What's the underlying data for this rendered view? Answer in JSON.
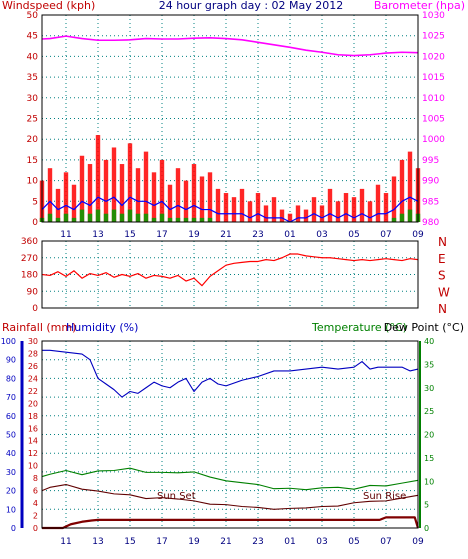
{
  "chart_data": [
    {
      "type": "line",
      "title": "24 hour graph day : 02 May 2012",
      "ylabel": "Windspeed (kph)",
      "y2label": "Barometer (hpa)",
      "x_ticks": [
        "11",
        "13",
        "15",
        "17",
        "19",
        "21",
        "23",
        "01",
        "03",
        "05",
        "07",
        "09"
      ],
      "y_ticks": [
        0,
        5,
        10,
        15,
        20,
        25,
        30,
        35,
        40,
        45,
        50
      ],
      "y2_ticks": [
        980,
        985,
        990,
        995,
        1000,
        1005,
        1010,
        1015,
        1020,
        1025,
        1030
      ],
      "ylim": [
        0,
        50
      ],
      "y2lim": [
        980,
        1030
      ],
      "grid": true,
      "colors": {
        "gust": "#ff0000",
        "average": "#0000ff",
        "low": "#00a000",
        "barometer": "#ff00ff",
        "left_axis": "#c00000",
        "right_axis": "#ff00ff"
      },
      "barometer": {
        "hours": [
          9.5,
          10,
          11,
          12,
          13,
          14,
          15,
          16,
          17,
          18,
          19,
          20,
          21,
          22,
          23,
          24,
          25,
          26,
          27,
          28,
          29,
          30,
          31,
          32,
          33
        ],
        "values": [
          1024.2,
          1024.3,
          1024.9,
          1024.3,
          1023.9,
          1023.9,
          1024.0,
          1024.3,
          1024.2,
          1024.2,
          1024.4,
          1024.5,
          1024.3,
          1024.0,
          1023.4,
          1022.8,
          1022.2,
          1021.5,
          1021.0,
          1020.4,
          1020.2,
          1020.4,
          1020.8,
          1021.0,
          1020.9
        ]
      },
      "gust": {
        "hours": [
          9.5,
          10,
          10.5,
          11,
          11.5,
          12,
          12.5,
          13,
          13.5,
          14,
          14.5,
          15,
          15.5,
          16,
          16.5,
          17,
          17.5,
          18,
          18.5,
          19,
          19.5,
          20,
          20.5,
          21,
          21.5,
          22,
          22.5,
          23,
          23.5,
          24,
          24.5,
          25,
          25.5,
          26,
          26.5,
          27,
          27.5,
          28,
          28.5,
          29,
          29.5,
          30,
          30.5,
          31,
          31.5,
          32,
          32.5,
          33
        ],
        "values": [
          10,
          13,
          8,
          12,
          9,
          16,
          14,
          21,
          15,
          18,
          14,
          19,
          13,
          17,
          12,
          15,
          9,
          13,
          10,
          14,
          11,
          12,
          8,
          7,
          6,
          8,
          5,
          7,
          4,
          6,
          3,
          2,
          4,
          3,
          6,
          4,
          8,
          5,
          7,
          6,
          8,
          5,
          9,
          7,
          11,
          15,
          17,
          13
        ]
      },
      "average": {
        "hours": [
          9.5,
          10,
          10.5,
          11,
          11.5,
          12,
          12.5,
          13,
          13.5,
          14,
          14.5,
          15,
          15.5,
          16,
          16.5,
          17,
          17.5,
          18,
          18.5,
          19,
          19.5,
          20,
          20.5,
          21,
          21.5,
          22,
          22.5,
          23,
          23.5,
          24,
          24.5,
          25,
          25.5,
          26,
          26.5,
          27,
          27.5,
          28,
          28.5,
          29,
          29.5,
          30,
          30.5,
          31,
          31.5,
          32,
          32.5,
          33
        ],
        "values": [
          3,
          5,
          3,
          4,
          3,
          5,
          4,
          6,
          5,
          6,
          4,
          6,
          5,
          5,
          4,
          5,
          3,
          4,
          3,
          4,
          3,
          3,
          2,
          2,
          2,
          2,
          1,
          2,
          1,
          1,
          1,
          0,
          1,
          1,
          2,
          1,
          2,
          1,
          2,
          1,
          2,
          1,
          2,
          2,
          3,
          5,
          6,
          5
        ]
      },
      "low": {
        "hours": [
          9.5,
          10,
          10.5,
          11,
          11.5,
          12,
          12.5,
          13,
          13.5,
          14,
          14.5,
          15,
          15.5,
          16,
          16.5,
          17,
          17.5,
          18,
          18.5,
          19,
          19.5,
          20,
          20.5,
          21,
          21.5,
          22,
          22.5,
          23,
          23.5,
          24,
          24.5,
          25,
          25.5,
          26,
          26.5,
          27,
          27.5,
          28,
          28.5,
          29,
          29.5,
          30,
          30.5,
          31,
          31.5,
          32,
          32.5,
          33
        ],
        "values": [
          1,
          2,
          1,
          2,
          1,
          3,
          2,
          3,
          2,
          3,
          2,
          3,
          2,
          2,
          1,
          2,
          1,
          1,
          1,
          1,
          1,
          1,
          0,
          0,
          0,
          0,
          0,
          0,
          0,
          0,
          0,
          0,
          0,
          0,
          0,
          0,
          0,
          0,
          0,
          0,
          0,
          0,
          0,
          0,
          1,
          2,
          3,
          2
        ]
      }
    },
    {
      "type": "scatter",
      "series_name": "Wind direction",
      "y_ticks": [
        0,
        90,
        180,
        270,
        360
      ],
      "compass_labels": [
        "N",
        "W",
        "S",
        "E",
        "N"
      ],
      "x_ticks": [
        "11",
        "13",
        "15",
        "17",
        "19",
        "21",
        "23",
        "01",
        "03",
        "05",
        "07",
        "09"
      ],
      "ylim": [
        0,
        360
      ],
      "grid": true,
      "colors": {
        "direction": "#ff0000",
        "compass": "#c00000"
      },
      "direction": {
        "hours": [
          9.5,
          10,
          10.5,
          11,
          11.5,
          12,
          12.5,
          13,
          13.5,
          14,
          14.5,
          15,
          15.5,
          16,
          16.5,
          17,
          17.5,
          18,
          18.5,
          19,
          19.5,
          20,
          20.5,
          21,
          21.5,
          22,
          22.5,
          23,
          23.5,
          24,
          24.5,
          25,
          25.5,
          26,
          26.5,
          27,
          27.5,
          28,
          28.5,
          29,
          29.5,
          30,
          30.5,
          31,
          31.5,
          32,
          32.5,
          33
        ],
        "values": [
          180,
          175,
          195,
          170,
          200,
          160,
          185,
          175,
          190,
          165,
          180,
          170,
          185,
          160,
          175,
          170,
          160,
          175,
          145,
          160,
          120,
          170,
          200,
          230,
          240,
          245,
          250,
          250,
          260,
          255,
          270,
          290,
          290,
          280,
          275,
          270,
          270,
          265,
          260,
          255,
          260,
          255,
          260,
          265,
          260,
          255,
          265,
          260
        ]
      }
    },
    {
      "type": "line",
      "ylabel": "Rainfall (mm)",
      "ylabel2": "Humidity (%)",
      "y2label": "Temperature (°C)",
      "y2label2": "Dew Point (°C)",
      "x_ticks": [
        "11",
        "13",
        "15",
        "17",
        "19",
        "21",
        "23",
        "01",
        "03",
        "05",
        "07",
        "09"
      ],
      "rain_ticks": [
        0,
        2,
        4,
        6,
        8,
        10,
        12,
        14,
        16,
        18,
        20,
        22,
        24,
        26,
        28,
        30
      ],
      "humidity_ticks": [
        0,
        10,
        20,
        30,
        40,
        50,
        60,
        70,
        80,
        90,
        100
      ],
      "temp_ticks": [
        0,
        5,
        10,
        15,
        20,
        25,
        30,
        35,
        40
      ],
      "ylim_humidity": [
        0,
        100
      ],
      "ylim_rain": [
        0,
        30
      ],
      "y2lim": [
        0,
        40
      ],
      "grid": true,
      "annotations": {
        "sunset": "Sun Set",
        "sunrise": "Sun Rise"
      },
      "colors": {
        "humidity": "#0000c0",
        "temperature": "#008000",
        "dewpoint": "#600000",
        "rainfall": "#800000",
        "rain_axis": "#c00000",
        "humidity_axis": "#0000c0",
        "temp_axis": "#008000"
      },
      "humidity": {
        "hours": [
          9.5,
          10,
          11,
          12,
          12.5,
          13,
          13.5,
          14,
          14.5,
          15,
          15.5,
          16,
          16.5,
          17,
          17.5,
          18,
          18.5,
          19,
          19.5,
          20,
          20.5,
          21,
          22,
          23,
          24,
          25,
          26,
          27,
          28,
          29,
          29.5,
          30,
          30.5,
          31,
          32,
          32.5,
          33
        ],
        "values": [
          95,
          95,
          94,
          93,
          90,
          80,
          77,
          74,
          70,
          73,
          72,
          75,
          78,
          76,
          75,
          78,
          80,
          73,
          78,
          80,
          77,
          76,
          79,
          81,
          84,
          84,
          85,
          86,
          85,
          86,
          89,
          85,
          86,
          86,
          86,
          84,
          85
        ]
      },
      "temperature": {
        "hours": [
          9.5,
          10,
          11,
          12,
          13,
          14,
          15,
          16,
          17,
          18,
          19,
          20,
          21,
          22,
          23,
          24,
          25,
          26,
          27,
          28,
          29,
          30,
          31,
          32,
          33
        ],
        "values": [
          11.0,
          11.5,
          12.3,
          11.4,
          12.2,
          12.3,
          12.8,
          11.9,
          11.9,
          11.8,
          12.0,
          10.9,
          10.1,
          9.7,
          9.3,
          8.4,
          8.5,
          8.2,
          8.6,
          8.7,
          8.3,
          9.1,
          9.0,
          9.6,
          10.2
        ]
      },
      "dewpoint": {
        "hours": [
          9.5,
          10,
          11,
          12,
          13,
          14,
          15,
          16,
          17,
          18,
          19,
          20,
          21,
          22,
          23,
          24,
          25,
          26,
          27,
          28,
          29,
          30,
          31,
          32,
          33
        ],
        "values": [
          8.0,
          8.7,
          9.3,
          8.3,
          7.9,
          7.3,
          7.1,
          6.3,
          6.5,
          6.2,
          5.8,
          5.1,
          5.0,
          4.6,
          4.4,
          4.0,
          4.2,
          4.3,
          4.6,
          4.7,
          5.4,
          5.7,
          5.8,
          6.4,
          7.0
        ]
      },
      "rainfall": {
        "hours": [
          9.5,
          10.8,
          11.3,
          12.0,
          12.6,
          13.0,
          30.6,
          31.0,
          32.8,
          33.0
        ],
        "values": [
          0,
          0,
          0.6,
          1.0,
          1.2,
          1.3,
          1.3,
          1.7,
          1.7,
          0
        ]
      }
    }
  ]
}
